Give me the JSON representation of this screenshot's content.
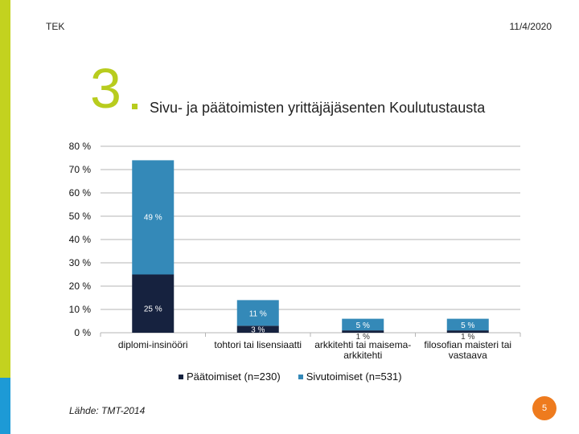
{
  "header": {
    "org": "TEK",
    "date": "11/4/2020"
  },
  "slide": {
    "number": "3",
    "title": "Sivu- ja päätoimisten yrittäjäjäsenten Koulutustausta"
  },
  "footer": {
    "source": "Lähde: TMT-2014",
    "page": "5"
  },
  "colors": {
    "paatoimiset": "#16223f",
    "sivutoimiset": "#3489b8",
    "accent_green": "#b8cc1e",
    "accent_blue": "#1d9ad6",
    "badge": "#ee7b1e"
  },
  "chart_data": {
    "type": "bar",
    "stacked": true,
    "categories": [
      "diplomi-insinööri",
      "tohtori tai lisensiaatti",
      "arkkitehti tai maisema-arkkitehti",
      "filosofian maisteri tai vastaava"
    ],
    "category_lines": [
      [
        "diplomi-insinööri"
      ],
      [
        "tohtori tai lisensiaatti"
      ],
      [
        "arkkitehti tai maisema-",
        "arkkitehti"
      ],
      [
        "filosofian maisteri tai",
        "vastaava"
      ]
    ],
    "series": [
      {
        "name": "Päätoimiset (n=230)",
        "values": [
          25,
          3,
          1,
          1
        ],
        "labels": [
          "25 %",
          "3 %",
          "1 %",
          "1 %"
        ],
        "color": "#16223f"
      },
      {
        "name": "Sivutoimiset (n=531)",
        "values": [
          49,
          11,
          5,
          5
        ],
        "labels": [
          "49 %",
          "11 %",
          "5 %",
          "5 %"
        ],
        "color": "#3489b8"
      }
    ],
    "y_ticks": [
      0,
      10,
      20,
      30,
      40,
      50,
      60,
      70,
      80
    ],
    "y_tick_labels": [
      "0 %",
      "10 %",
      "20 %",
      "30 %",
      "40 %",
      "50 %",
      "60 %",
      "70 %",
      "80 %"
    ],
    "ylim": [
      0,
      80
    ],
    "grid": true,
    "legend_position": "bottom"
  }
}
